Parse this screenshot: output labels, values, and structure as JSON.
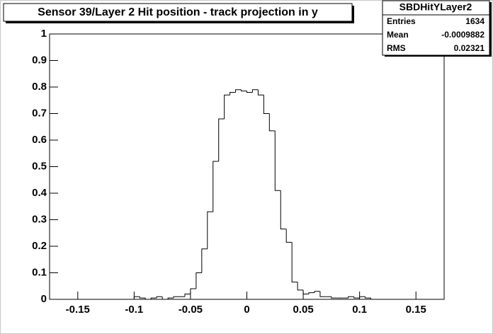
{
  "chart_data": {
    "type": "histogram",
    "title": "Sensor 39/Layer 2 Hit position - track projection in y",
    "stats": {
      "name": "SBDHitYLayer2",
      "rows": [
        {
          "label": "Entries",
          "value": 1634
        },
        {
          "label": "Mean",
          "value": -0.0009882
        },
        {
          "label": "RMS",
          "value": 0.02321
        }
      ]
    },
    "color": "#000000",
    "bins": [
      -0.175,
      -0.17,
      -0.165,
      -0.16,
      -0.155,
      -0.15,
      -0.145,
      -0.14,
      -0.135,
      -0.13,
      -0.125,
      -0.12,
      -0.115,
      -0.11,
      -0.105,
      -0.1,
      -0.095,
      -0.09,
      -0.085,
      -0.08,
      -0.075,
      -0.07,
      -0.065,
      -0.06,
      -0.055,
      -0.05,
      -0.045,
      -0.04,
      -0.035,
      -0.03,
      -0.025,
      -0.02,
      -0.015,
      -0.01,
      -0.005,
      0,
      0.005,
      0.01,
      0.015,
      0.02,
      0.025,
      0.03,
      0.035,
      0.04,
      0.045,
      0.05,
      0.055,
      0.06,
      0.065,
      0.07,
      0.075,
      0.08,
      0.085,
      0.09,
      0.095,
      0.1,
      0.105,
      0.11,
      0.115,
      0.12,
      0.125,
      0.13,
      0.135,
      0.14,
      0.145,
      0.15,
      0.155,
      0.16,
      0.165,
      0.17,
      0.175
    ],
    "values": [
      0,
      0,
      0,
      0,
      0,
      0,
      0,
      0,
      0,
      0,
      0,
      0,
      0,
      0,
      0,
      0.01,
      0.005,
      0,
      0.005,
      0.01,
      0,
      0.005,
      0.01,
      0.01,
      0.02,
      0.04,
      0.1,
      0.19,
      0.33,
      0.52,
      0.68,
      0.77,
      0.78,
      0.79,
      0.785,
      0.78,
      0.79,
      0.77,
      0.7,
      0.635,
      0.41,
      0.265,
      0.215,
      0.065,
      0.035,
      0.02,
      0.025,
      0.03,
      0.01,
      0.01,
      0.005,
      0.005,
      0.005,
      0.01,
      0.005,
      0.01,
      0.005,
      0,
      0,
      0,
      0,
      0,
      0,
      0,
      0,
      0,
      0,
      0,
      0,
      0
    ],
    "xlim": [
      -0.175,
      0.175
    ],
    "ylim": [
      0,
      1
    ],
    "xticks": [
      -0.15,
      -0.1,
      -0.05,
      0,
      0.05,
      0.1,
      0.15
    ],
    "yticks": [
      0,
      0.1,
      0.2,
      0.3,
      0.4,
      0.5,
      0.6,
      0.7,
      0.8,
      0.9,
      1
    ]
  }
}
